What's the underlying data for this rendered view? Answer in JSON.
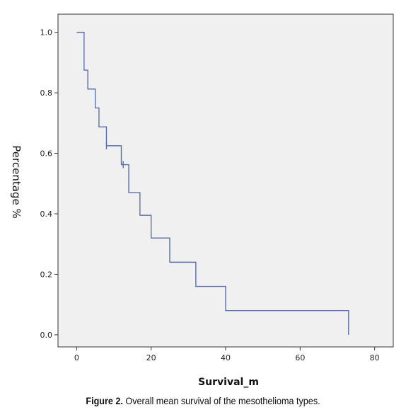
{
  "chart_data": {
    "type": "line",
    "step": true,
    "xlabel": "Survival_m",
    "ylabel": "Percentage %",
    "xlim": [
      -5,
      85
    ],
    "ylim": [
      -0.04,
      1.06
    ],
    "x_ticks": [
      "0",
      "20",
      "40",
      "60",
      "80"
    ],
    "y_ticks": [
      "0.0",
      "0.2",
      "0.4",
      "0.6",
      "0.8",
      "1.0"
    ],
    "series": [
      {
        "x": [
          0,
          2,
          3,
          5,
          6,
          8,
          12,
          14,
          17,
          20,
          25,
          32,
          40,
          73
        ],
        "y": [
          1.0,
          0.875,
          0.8125,
          0.75,
          0.6875,
          0.625,
          0.5625,
          0.47,
          0.395,
          0.32,
          0.24,
          0.16,
          0.08,
          0.0
        ],
        "color": "#5b6fae"
      }
    ],
    "censored": [
      {
        "x": 8,
        "y": 0.625
      },
      {
        "x": 12.5,
        "y": 0.5625
      }
    ],
    "plot_background": "#f0f0f0",
    "grid": false
  },
  "caption": {
    "label": "Figure 2.",
    "text": " Overall mean survival of the mesothelioma types."
  }
}
